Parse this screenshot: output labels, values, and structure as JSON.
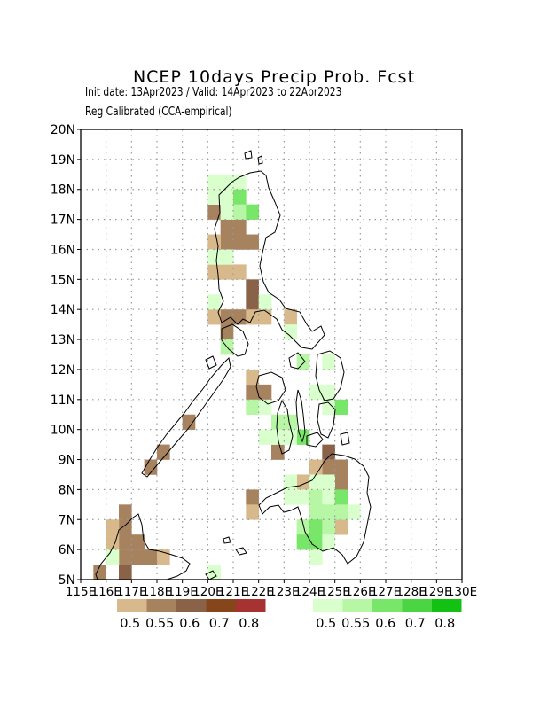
{
  "title": "NCEP 10days Precip Prob. Fcst",
  "subtitle_1": "Init date: 13Apr2023 / Valid: 14Apr2023 to 22Apr2023",
  "subtitle_2": "Reg Calibrated (CCA-empirical)",
  "map": {
    "lon_range": [
      115,
      130
    ],
    "lat_range": [
      5,
      20
    ],
    "lat_labels": [
      "5N",
      "6N",
      "7N",
      "8N",
      "9N",
      "10N",
      "11N",
      "12N",
      "13N",
      "14N",
      "15N",
      "16N",
      "17N",
      "18N",
      "19N",
      "20N"
    ],
    "lon_labels": [
      "115E",
      "116E",
      "117E",
      "118E",
      "119E",
      "120E",
      "121E",
      "122E",
      "123E",
      "124E",
      "125E",
      "126E",
      "127E",
      "128E",
      "129E",
      "130E"
    ],
    "grid_spacing_deg": 1,
    "cell_size_deg": 0.5,
    "cells_dry": [
      {
        "lon": 120.0,
        "lat": 17.0,
        "c": 1
      },
      {
        "lon": 120.5,
        "lat": 16.5,
        "c": 1
      },
      {
        "lon": 121.0,
        "lat": 16.5,
        "c": 1
      },
      {
        "lon": 120.5,
        "lat": 16.0,
        "c": 1
      },
      {
        "lon": 121.0,
        "lat": 16.0,
        "c": 1
      },
      {
        "lon": 121.5,
        "lat": 16.0,
        "c": 1
      },
      {
        "lon": 120.0,
        "lat": 16.0,
        "c": 0
      },
      {
        "lon": 120.0,
        "lat": 15.0,
        "c": 0
      },
      {
        "lon": 120.5,
        "lat": 15.0,
        "c": 0
      },
      {
        "lon": 121.0,
        "lat": 15.0,
        "c": 0
      },
      {
        "lon": 121.5,
        "lat": 14.0,
        "c": 2
      },
      {
        "lon": 121.5,
        "lat": 14.5,
        "c": 2
      },
      {
        "lon": 120.5,
        "lat": 13.5,
        "c": 1
      },
      {
        "lon": 121.0,
        "lat": 13.5,
        "c": 1
      },
      {
        "lon": 120.5,
        "lat": 13.0,
        "c": 1
      },
      {
        "lon": 120.0,
        "lat": 13.5,
        "c": 0
      },
      {
        "lon": 121.5,
        "lat": 13.5,
        "c": 0
      },
      {
        "lon": 122.0,
        "lat": 13.5,
        "c": 0
      },
      {
        "lon": 123.0,
        "lat": 13.5,
        "c": 0
      },
      {
        "lon": 121.5,
        "lat": 11.0,
        "c": 1
      },
      {
        "lon": 122.0,
        "lat": 11.0,
        "c": 1
      },
      {
        "lon": 121.5,
        "lat": 11.5,
        "c": 0
      },
      {
        "lon": 122.5,
        "lat": 9.0,
        "c": 1
      },
      {
        "lon": 119.0,
        "lat": 10.0,
        "c": 1
      },
      {
        "lon": 118.0,
        "lat": 9.0,
        "c": 1
      },
      {
        "lon": 117.5,
        "lat": 8.5,
        "c": 1
      },
      {
        "lon": 124.5,
        "lat": 9.0,
        "c": 2
      },
      {
        "lon": 124.5,
        "lat": 8.5,
        "c": 1
      },
      {
        "lon": 125.0,
        "lat": 8.5,
        "c": 1
      },
      {
        "lon": 124.0,
        "lat": 8.5,
        "c": 0
      },
      {
        "lon": 123.5,
        "lat": 8.0,
        "c": 0
      },
      {
        "lon": 125.0,
        "lat": 8.0,
        "c": 1
      },
      {
        "lon": 121.5,
        "lat": 7.5,
        "c": 1
      },
      {
        "lon": 121.5,
        "lat": 7.0,
        "c": 0
      },
      {
        "lon": 125.0,
        "lat": 6.5,
        "c": 0
      },
      {
        "lon": 116.5,
        "lat": 7.0,
        "c": 1
      },
      {
        "lon": 116.5,
        "lat": 6.5,
        "c": 1
      },
      {
        "lon": 116.5,
        "lat": 6.0,
        "c": 1
      },
      {
        "lon": 116.5,
        "lat": 5.5,
        "c": 1
      },
      {
        "lon": 116.0,
        "lat": 6.5,
        "c": 0
      },
      {
        "lon": 116.0,
        "lat": 6.0,
        "c": 0
      },
      {
        "lon": 117.0,
        "lat": 6.0,
        "c": 1
      },
      {
        "lon": 117.0,
        "lat": 5.5,
        "c": 1
      },
      {
        "lon": 117.5,
        "lat": 5.5,
        "c": 1
      },
      {
        "lon": 116.5,
        "lat": 5.0,
        "c": 2
      },
      {
        "lon": 115.5,
        "lat": 5.0,
        "c": 1
      },
      {
        "lon": 118.0,
        "lat": 5.5,
        "c": 0
      }
    ],
    "cells_wet": [
      {
        "lon": 120.0,
        "lat": 18.0,
        "c": 0
      },
      {
        "lon": 120.5,
        "lat": 18.0,
        "c": 0
      },
      {
        "lon": 121.0,
        "lat": 18.0,
        "c": 0
      },
      {
        "lon": 120.0,
        "lat": 17.5,
        "c": 0
      },
      {
        "lon": 120.5,
        "lat": 17.5,
        "c": 0
      },
      {
        "lon": 121.0,
        "lat": 17.5,
        "c": 2
      },
      {
        "lon": 120.5,
        "lat": 17.0,
        "c": 0
      },
      {
        "lon": 121.0,
        "lat": 17.0,
        "c": 1
      },
      {
        "lon": 121.5,
        "lat": 17.0,
        "c": 2
      },
      {
        "lon": 120.0,
        "lat": 15.5,
        "c": 0
      },
      {
        "lon": 120.5,
        "lat": 15.5,
        "c": 0
      },
      {
        "lon": 120.5,
        "lat": 12.5,
        "c": 1
      },
      {
        "lon": 120.0,
        "lat": 14.0,
        "c": 0
      },
      {
        "lon": 122.0,
        "lat": 14.0,
        "c": 0
      },
      {
        "lon": 123.0,
        "lat": 13.0,
        "c": 0
      },
      {
        "lon": 124.5,
        "lat": 12.0,
        "c": 0
      },
      {
        "lon": 123.5,
        "lat": 12.0,
        "c": 1
      },
      {
        "lon": 124.0,
        "lat": 11.0,
        "c": 0
      },
      {
        "lon": 124.5,
        "lat": 11.0,
        "c": 0
      },
      {
        "lon": 124.5,
        "lat": 10.5,
        "c": 0
      },
      {
        "lon": 125.0,
        "lat": 10.5,
        "c": 2
      },
      {
        "lon": 121.5,
        "lat": 10.5,
        "c": 1
      },
      {
        "lon": 122.0,
        "lat": 10.5,
        "c": 0
      },
      {
        "lon": 122.5,
        "lat": 10.0,
        "c": 1
      },
      {
        "lon": 123.0,
        "lat": 10.0,
        "c": 1
      },
      {
        "lon": 123.5,
        "lat": 9.5,
        "c": 2
      },
      {
        "lon": 123.0,
        "lat": 9.5,
        "c": 0
      },
      {
        "lon": 122.5,
        "lat": 9.5,
        "c": 0
      },
      {
        "lon": 122.0,
        "lat": 9.5,
        "c": 0
      },
      {
        "lon": 123.0,
        "lat": 8.0,
        "c": 0
      },
      {
        "lon": 123.0,
        "lat": 7.5,
        "c": 0
      },
      {
        "lon": 123.5,
        "lat": 7.5,
        "c": 0
      },
      {
        "lon": 124.0,
        "lat": 7.5,
        "c": 1
      },
      {
        "lon": 124.5,
        "lat": 7.5,
        "c": 0
      },
      {
        "lon": 125.0,
        "lat": 7.5,
        "c": 2
      },
      {
        "lon": 124.0,
        "lat": 7.0,
        "c": 1
      },
      {
        "lon": 124.5,
        "lat": 7.0,
        "c": 1
      },
      {
        "lon": 125.0,
        "lat": 7.0,
        "c": 1
      },
      {
        "lon": 123.5,
        "lat": 6.5,
        "c": 1
      },
      {
        "lon": 124.0,
        "lat": 6.5,
        "c": 2
      },
      {
        "lon": 124.5,
        "lat": 6.5,
        "c": 1
      },
      {
        "lon": 123.5,
        "lat": 6.0,
        "c": 2
      },
      {
        "lon": 124.0,
        "lat": 6.0,
        "c": 2
      },
      {
        "lon": 124.5,
        "lat": 6.0,
        "c": 0
      },
      {
        "lon": 124.0,
        "lat": 5.5,
        "c": 0
      },
      {
        "lon": 124.0,
        "lat": 8.0,
        "c": 0
      },
      {
        "lon": 124.5,
        "lat": 8.0,
        "c": 0
      },
      {
        "lon": 125.5,
        "lat": 7.0,
        "c": 0
      },
      {
        "lon": 116.0,
        "lat": 5.5,
        "c": 0
      },
      {
        "lon": 120.0,
        "lat": 5.0,
        "c": 0
      }
    ]
  },
  "legend": {
    "dry_colors": [
      "#d7b98c",
      "#a7825f",
      "#8a6248",
      "#87451c",
      "#a63232"
    ],
    "wet_colors": [
      "#d8ffcc",
      "#b6f6a5",
      "#78e668",
      "#4ad642",
      "#12c112"
    ],
    "dry_labels": [
      "0.5",
      "0.55",
      "0.6",
      "0.7",
      "0.8"
    ],
    "wet_labels": [
      "0.5",
      "0.55",
      "0.6",
      "0.7",
      "0.8"
    ]
  }
}
